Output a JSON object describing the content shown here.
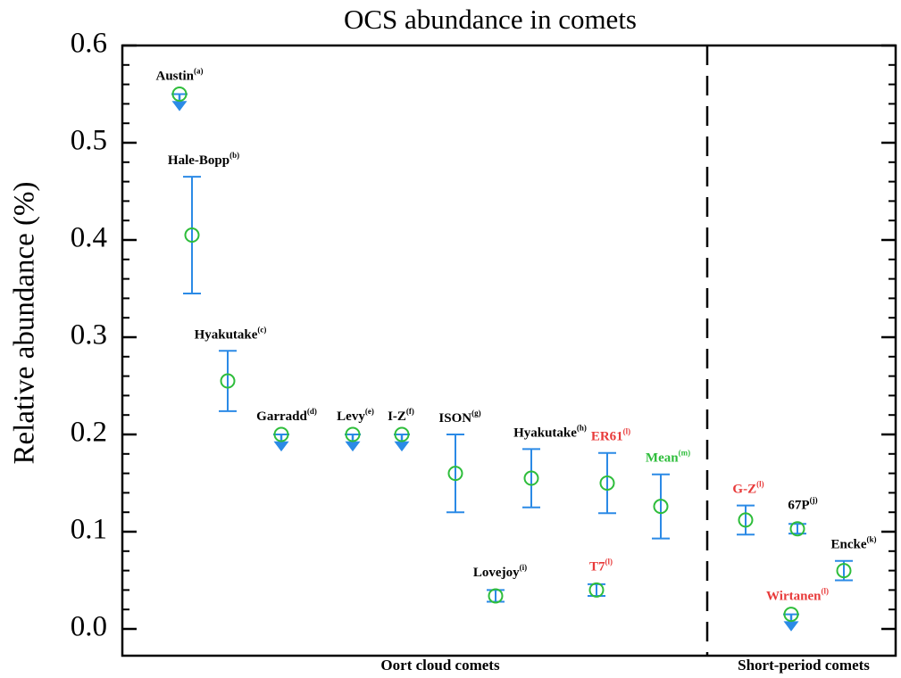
{
  "chart_data": {
    "type": "errorbar",
    "title": "OCS abundance in comets",
    "y_label": "Relative abundance (%)",
    "ylim": [
      0,
      0.6
    ],
    "yticks": [
      {
        "value": 0,
        "label": "0.0"
      },
      0.1,
      0.2,
      0.3,
      0.4,
      0.5,
      0.6
    ],
    "minor_yticks": [
      0.02,
      0.04,
      0.06,
      0.08,
      0.12,
      0.14,
      0.16,
      0.18,
      0.22,
      0.24,
      0.26,
      0.28,
      0.32,
      0.34,
      0.36,
      0.38,
      0.42,
      0.44,
      0.46,
      0.48,
      0.52,
      0.54,
      0.56,
      0.58
    ],
    "marker_color": "#2ebd3b",
    "error_color": "#2b8ae6",
    "groups": [
      "Oort cloud comets",
      "Short-period comets"
    ],
    "points": [
      {
        "name": "Austin",
        "ref": "(a)",
        "value": 0.55,
        "upper_limit": true,
        "label_color": "#000000"
      },
      {
        "name": "Hale-Bopp",
        "ref": "(b)",
        "value": 0.405,
        "error": 0.06,
        "label_color": "#000000"
      },
      {
        "name": "Hyakutake",
        "ref": "(c)",
        "value": 0.255,
        "error": 0.031,
        "label_color": "#000000"
      },
      {
        "name": "Garradd",
        "ref": "(d)",
        "value": 0.2,
        "upper_limit": true,
        "label_color": "#000000"
      },
      {
        "name": "Levy",
        "ref": "(e)",
        "value": 0.2,
        "upper_limit": true,
        "label_color": "#000000"
      },
      {
        "name": "I-Z",
        "ref": "(f)",
        "value": 0.2,
        "upper_limit": true,
        "label_color": "#000000"
      },
      {
        "name": "ISON",
        "ref": "(g)",
        "value": 0.16,
        "error": 0.04,
        "label_color": "#000000"
      },
      {
        "name": "Lovejoy",
        "ref": "(i)",
        "value": 0.034,
        "error": 0.006,
        "label_color": "#000000"
      },
      {
        "name": "Hyakutake",
        "ref": "(h)",
        "value": 0.155,
        "error": 0.03,
        "label_color": "#000000"
      },
      {
        "name": "T7",
        "ref": "(l)",
        "value": 0.04,
        "error": 0.006,
        "label_color": "#e83a3a"
      },
      {
        "name": "ER61",
        "ref": "(l)",
        "value": 0.15,
        "error": 0.031,
        "label_color": "#e83a3a"
      },
      {
        "name": "Mean",
        "ref": "(m)",
        "value": 0.126,
        "error": 0.033,
        "label_color": "#2ebd3b"
      },
      {
        "name": "G-Z",
        "ref": "(l)",
        "value": 0.112,
        "error": 0.015,
        "label_color": "#e83a3a"
      },
      {
        "name": "67P",
        "ref": "(j)",
        "value": 0.103,
        "error": 0.005,
        "label_color": "#000000"
      },
      {
        "name": "Wirtanen",
        "ref": "(l)",
        "value": 0.015,
        "upper_limit": true,
        "label_color": "#e83a3a"
      },
      {
        "name": "Encke",
        "ref": "(k)",
        "value": 0.06,
        "error": 0.01,
        "label_color": "#000000"
      }
    ]
  }
}
